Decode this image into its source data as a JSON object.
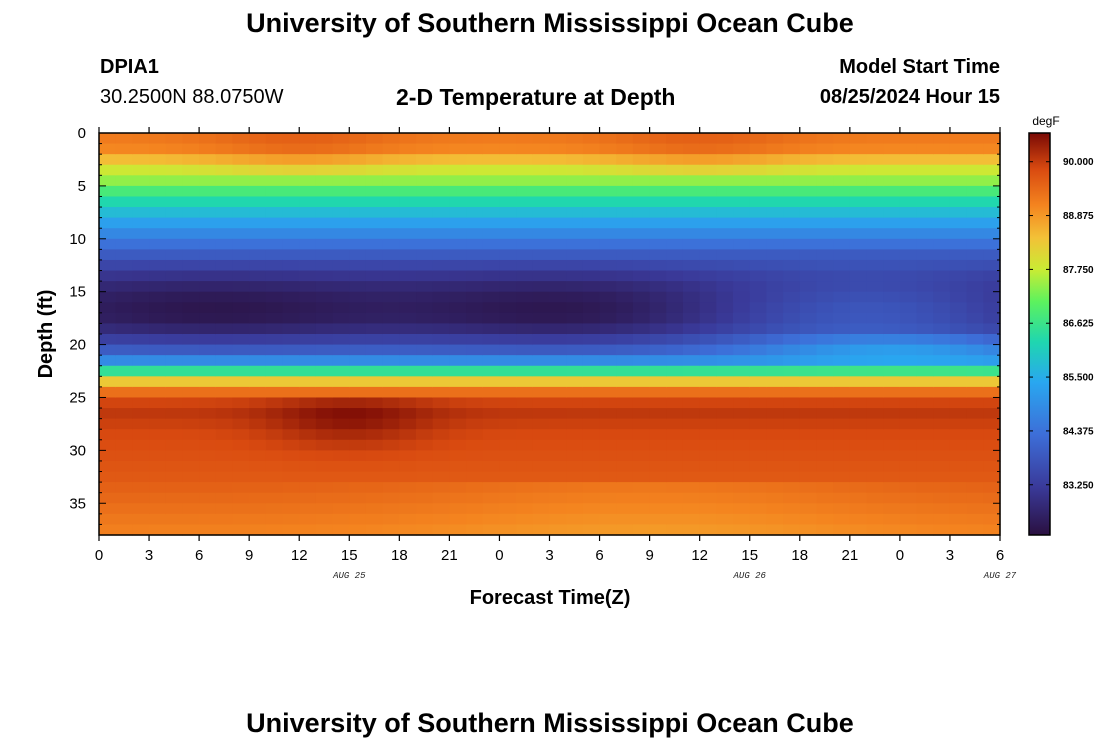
{
  "header": {
    "title": "University of Southern Mississippi Ocean Cube",
    "station": "DPIA1",
    "location": "30.2500N  88.0750W",
    "chart_title": "2-D Temperature at Depth",
    "model_start_label": "Model Start Time",
    "model_start_value": "08/25/2024 Hour 15"
  },
  "footer": {
    "title": "University of Southern Mississippi Ocean Cube"
  },
  "chart_data": {
    "type": "heatmap",
    "title": "2-D Temperature at Depth",
    "xlabel": "Forecast Time(Z)",
    "ylabel": "Depth (ft)",
    "x_hours_range": [
      0,
      54
    ],
    "x_tick_labels": [
      "0",
      "3",
      "6",
      "9",
      "12",
      "15",
      "18",
      "21",
      "0",
      "3",
      "6",
      "9",
      "12",
      "15",
      "18",
      "21",
      "0",
      "3",
      "6"
    ],
    "date_labels": [
      {
        "text": "AUG 25",
        "hour": 15
      },
      {
        "text": "AUG 26",
        "hour": 39
      },
      {
        "text": "AUG 27",
        "hour": 54
      }
    ],
    "ylim": [
      0,
      38
    ],
    "y_reversed": true,
    "y_ticks": [
      0,
      5,
      10,
      15,
      20,
      25,
      30,
      35
    ],
    "colorbar": {
      "units": "degF",
      "min": 82.2,
      "max": 90.6,
      "tick_labels": [
        "90.000",
        "88.875",
        "87.750",
        "86.625",
        "85.500",
        "84.375",
        "83.250"
      ]
    },
    "depth_profile": [
      {
        "depth": 0,
        "temp": 89.3
      },
      {
        "depth": 1,
        "temp": 89.5
      },
      {
        "depth": 2,
        "temp": 89.0
      },
      {
        "depth": 3,
        "temp": 88.3
      },
      {
        "depth": 4,
        "temp": 87.7
      },
      {
        "depth": 5,
        "temp": 87.1
      },
      {
        "depth": 6,
        "temp": 86.5
      },
      {
        "depth": 7,
        "temp": 86.0
      },
      {
        "depth": 8,
        "temp": 85.5
      },
      {
        "depth": 9,
        "temp": 85.0
      },
      {
        "depth": 10,
        "temp": 84.6
      },
      {
        "depth": 11,
        "temp": 84.1
      },
      {
        "depth": 12,
        "temp": 83.7
      },
      {
        "depth": 13,
        "temp": 83.3
      },
      {
        "depth": 14,
        "temp": 83.0
      },
      {
        "depth": 15,
        "temp": 82.8
      },
      {
        "depth": 16,
        "temp": 82.7
      },
      {
        "depth": 17,
        "temp": 82.7
      },
      {
        "depth": 18,
        "temp": 82.8
      },
      {
        "depth": 19,
        "temp": 83.2
      },
      {
        "depth": 20,
        "temp": 83.7
      },
      {
        "depth": 21,
        "temp": 84.3
      },
      {
        "depth": 22,
        "temp": 85.4
      },
      {
        "depth": 23,
        "temp": 87.6
      },
      {
        "depth": 24,
        "temp": 89.0
      },
      {
        "depth": 25,
        "temp": 89.7
      },
      {
        "depth": 26,
        "temp": 90.1
      },
      {
        "depth": 27,
        "temp": 90.0
      },
      {
        "depth": 28,
        "temp": 89.9
      },
      {
        "depth": 29,
        "temp": 89.8
      },
      {
        "depth": 30,
        "temp": 89.8
      },
      {
        "depth": 31,
        "temp": 89.7
      },
      {
        "depth": 32,
        "temp": 89.7
      },
      {
        "depth": 33,
        "temp": 89.6
      },
      {
        "depth": 34,
        "temp": 89.5
      },
      {
        "depth": 35,
        "temp": 89.4
      },
      {
        "depth": 36,
        "temp": 89.3
      },
      {
        "depth": 37,
        "temp": 89.2
      },
      {
        "depth": 38,
        "temp": 89.1
      }
    ]
  }
}
